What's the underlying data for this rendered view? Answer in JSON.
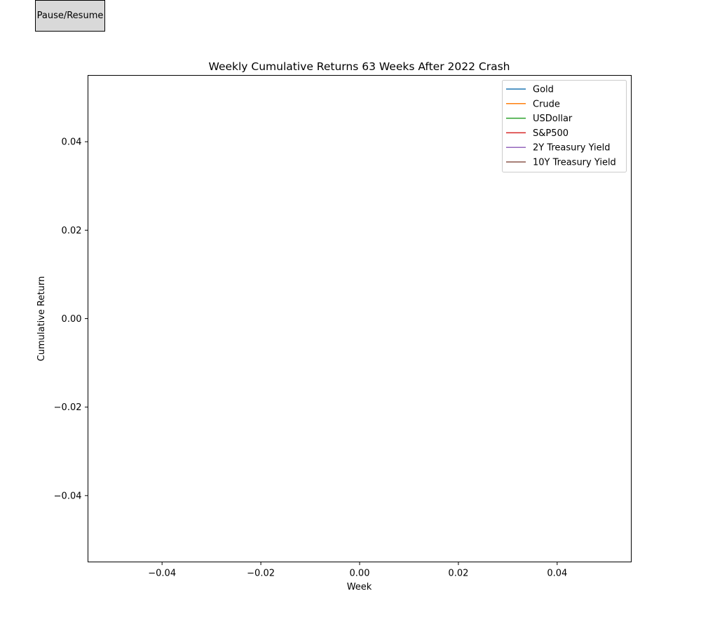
{
  "controls": {
    "pause_resume_label": "Pause/Resume"
  },
  "chart_data": {
    "type": "line",
    "title": "Weekly Cumulative Returns 63 Weeks After 2022 Crash",
    "xlabel": "Week",
    "ylabel": "Cumulative Return",
    "xlim": [
      -0.055,
      0.055
    ],
    "ylim": [
      -0.055,
      0.055
    ],
    "xticks": [
      -0.04,
      -0.02,
      0.0,
      0.02,
      0.04
    ],
    "xtick_labels": [
      "−0.04",
      "−0.02",
      "0.00",
      "0.02",
      "0.04"
    ],
    "yticks": [
      -0.04,
      -0.02,
      0.0,
      0.02,
      0.04
    ],
    "ytick_labels": [
      "−0.04",
      "−0.02",
      "0.00",
      "0.02",
      "0.04"
    ],
    "grid": false,
    "legend_position": "top-right",
    "series": [
      {
        "name": "Gold",
        "color": "#1f77b4",
        "x": [],
        "y": []
      },
      {
        "name": "Crude",
        "color": "#ff7f0e",
        "x": [],
        "y": []
      },
      {
        "name": "USDollar",
        "color": "#2ca02c",
        "x": [],
        "y": []
      },
      {
        "name": "S&P500",
        "color": "#d62728",
        "x": [],
        "y": []
      },
      {
        "name": "2Y Treasury Yield",
        "color": "#9467bd",
        "x": [],
        "y": []
      },
      {
        "name": "10Y Treasury Yield",
        "color": "#8c564b",
        "x": [],
        "y": []
      }
    ]
  }
}
